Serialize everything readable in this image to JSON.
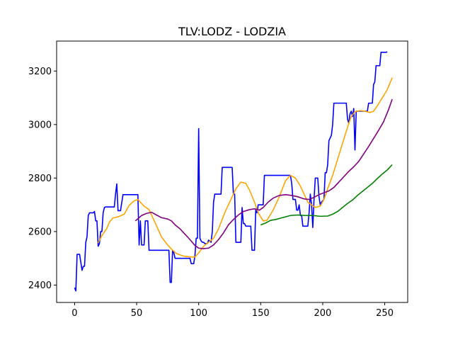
{
  "chart_data": {
    "type": "line",
    "title": "TLV:LODZ - LODZIA",
    "xlabel": "",
    "ylabel": "",
    "xlim": [
      -14.5,
      268.5
    ],
    "ylim": [
      2335,
      3312
    ],
    "xticks": [
      0,
      50,
      100,
      150,
      200,
      250
    ],
    "yticks": [
      2400,
      2600,
      2800,
      3000,
      3200
    ],
    "grid": false,
    "legend": "none",
    "series": [
      {
        "color": "#0000ff",
        "points": [
          [
            0,
            2390
          ],
          [
            1,
            2378
          ],
          [
            2,
            2515
          ],
          [
            4,
            2515
          ],
          [
            6,
            2455
          ],
          [
            7,
            2470
          ],
          [
            8,
            2470
          ],
          [
            9,
            2560
          ],
          [
            10,
            2580
          ],
          [
            11,
            2660
          ],
          [
            12,
            2670
          ],
          [
            15,
            2670
          ],
          [
            16,
            2675
          ],
          [
            17,
            2640
          ],
          [
            18,
            2640
          ],
          [
            19,
            2545
          ],
          [
            20,
            2555
          ],
          [
            21,
            2600
          ],
          [
            22,
            2600
          ],
          [
            23,
            2670
          ],
          [
            24,
            2690
          ],
          [
            25,
            2692
          ],
          [
            32,
            2692
          ],
          [
            33,
            2740
          ],
          [
            34,
            2778
          ],
          [
            35,
            2678
          ],
          [
            37,
            2678
          ],
          [
            39,
            2738
          ],
          [
            51,
            2738
          ],
          [
            52,
            2550
          ],
          [
            53,
            2640
          ],
          [
            54,
            2550
          ],
          [
            56,
            2550
          ],
          [
            57,
            2640
          ],
          [
            59,
            2640
          ],
          [
            60,
            2530
          ],
          [
            76,
            2530
          ],
          [
            77,
            2410
          ],
          [
            78,
            2410
          ],
          [
            79,
            2530
          ],
          [
            80,
            2520
          ],
          [
            81,
            2500
          ],
          [
            93,
            2500
          ],
          [
            94,
            2480
          ],
          [
            96,
            2480
          ],
          [
            97,
            2510
          ],
          [
            98,
            2575
          ],
          [
            99,
            2575
          ],
          [
            100,
            2985
          ],
          [
            101,
            2575
          ],
          [
            102,
            2565
          ],
          [
            103,
            2560
          ],
          [
            104,
            2560
          ],
          [
            105,
            2555
          ],
          [
            107,
            2555
          ],
          [
            108,
            2568
          ],
          [
            110,
            2560
          ],
          [
            111,
            2600
          ],
          [
            112,
            2710
          ],
          [
            113,
            2740
          ],
          [
            118,
            2740
          ],
          [
            119,
            2840
          ],
          [
            127,
            2840
          ],
          [
            128,
            2740
          ],
          [
            129,
            2740
          ],
          [
            130,
            2560
          ],
          [
            134,
            2560
          ],
          [
            135,
            2690
          ],
          [
            136,
            2630
          ],
          [
            137,
            2630
          ],
          [
            138,
            2620
          ],
          [
            142,
            2620
          ],
          [
            143,
            2530
          ],
          [
            145,
            2530
          ],
          [
            146,
            2680
          ],
          [
            147,
            2670
          ],
          [
            148,
            2700
          ],
          [
            152,
            2700
          ],
          [
            153,
            2810
          ],
          [
            174,
            2810
          ],
          [
            175,
            2780
          ],
          [
            176,
            2720
          ],
          [
            178,
            2720
          ],
          [
            179,
            2680
          ],
          [
            180,
            2680
          ],
          [
            181,
            2700
          ],
          [
            182,
            2660
          ],
          [
            183,
            2660
          ],
          [
            184,
            2620
          ],
          [
            188,
            2620
          ],
          [
            189,
            2670
          ],
          [
            190,
            2740
          ],
          [
            191,
            2700
          ],
          [
            192,
            2615
          ],
          [
            193,
            2720
          ],
          [
            194,
            2800
          ],
          [
            196,
            2800
          ],
          [
            197,
            2730
          ],
          [
            198,
            2700
          ],
          [
            199,
            2710
          ],
          [
            201,
            2720
          ],
          [
            202,
            2820
          ],
          [
            203,
            2820
          ],
          [
            204,
            2850
          ],
          [
            205,
            2940
          ],
          [
            207,
            2960
          ],
          [
            208,
            3000
          ],
          [
            209,
            3080
          ],
          [
            219,
            3080
          ],
          [
            220,
            3020
          ],
          [
            221,
            3005
          ],
          [
            222,
            3040
          ],
          [
            223,
            3050
          ],
          [
            224,
            3030
          ],
          [
            225,
            3060
          ],
          [
            226,
            2905
          ],
          [
            227,
            3050
          ],
          [
            236,
            3050
          ],
          [
            237,
            3080
          ],
          [
            240,
            3080
          ],
          [
            241,
            3150
          ],
          [
            242,
            3160
          ],
          [
            243,
            3220
          ],
          [
            246,
            3220
          ],
          [
            247,
            3270
          ],
          [
            251,
            3270
          ],
          [
            252,
            3272
          ]
        ]
      },
      {
        "color": "#ffa500",
        "points": [
          [
            19,
            2558
          ],
          [
            22,
            2585
          ],
          [
            26,
            2612
          ],
          [
            28,
            2635
          ],
          [
            31,
            2651
          ],
          [
            35,
            2655
          ],
          [
            40,
            2665
          ],
          [
            44,
            2698
          ],
          [
            48,
            2715
          ],
          [
            51,
            2720
          ],
          [
            53,
            2710
          ],
          [
            56,
            2695
          ],
          [
            60,
            2682
          ],
          [
            65,
            2632
          ],
          [
            70,
            2580
          ],
          [
            75,
            2550
          ],
          [
            78,
            2535
          ],
          [
            82,
            2518
          ],
          [
            88,
            2508
          ],
          [
            94,
            2505
          ],
          [
            97,
            2505
          ],
          [
            100,
            2520
          ],
          [
            104,
            2545
          ],
          [
            108,
            2560
          ],
          [
            112,
            2575
          ],
          [
            116,
            2610
          ],
          [
            121,
            2670
          ],
          [
            126,
            2720
          ],
          [
            130,
            2760
          ],
          [
            134,
            2785
          ],
          [
            138,
            2780
          ],
          [
            141,
            2755
          ],
          [
            145,
            2710
          ],
          [
            148,
            2670
          ],
          [
            152,
            2640
          ],
          [
            155,
            2642
          ],
          [
            160,
            2680
          ],
          [
            165,
            2730
          ],
          [
            170,
            2790
          ],
          [
            174,
            2810
          ],
          [
            178,
            2800
          ],
          [
            182,
            2770
          ],
          [
            185,
            2740
          ],
          [
            188,
            2710
          ],
          [
            191,
            2700
          ],
          [
            194,
            2690
          ],
          [
            198,
            2695
          ],
          [
            201,
            2720
          ],
          [
            204,
            2760
          ],
          [
            208,
            2810
          ],
          [
            212,
            2870
          ],
          [
            216,
            2930
          ],
          [
            220,
            2990
          ],
          [
            223,
            3030
          ],
          [
            226,
            3048
          ],
          [
            230,
            3052
          ],
          [
            234,
            3050
          ],
          [
            238,
            3045
          ],
          [
            241,
            3050
          ],
          [
            244,
            3070
          ],
          [
            248,
            3100
          ],
          [
            252,
            3130
          ],
          [
            256,
            3175
          ]
        ]
      },
      {
        "color": "#800080",
        "points": [
          [
            49,
            2640
          ],
          [
            54,
            2660
          ],
          [
            58,
            2668
          ],
          [
            62,
            2672
          ],
          [
            66,
            2662
          ],
          [
            70,
            2652
          ],
          [
            75,
            2647
          ],
          [
            78,
            2640
          ],
          [
            81,
            2625
          ],
          [
            85,
            2610
          ],
          [
            89,
            2590
          ],
          [
            93,
            2570
          ],
          [
            97,
            2548
          ],
          [
            100,
            2538
          ],
          [
            104,
            2536
          ],
          [
            108,
            2538
          ],
          [
            112,
            2550
          ],
          [
            116,
            2570
          ],
          [
            120,
            2595
          ],
          [
            124,
            2625
          ],
          [
            128,
            2645
          ],
          [
            132,
            2662
          ],
          [
            136,
            2675
          ],
          [
            141,
            2682
          ],
          [
            145,
            2685
          ],
          [
            149,
            2680
          ],
          [
            152,
            2690
          ],
          [
            156,
            2710
          ],
          [
            160,
            2725
          ],
          [
            165,
            2735
          ],
          [
            170,
            2738
          ],
          [
            175,
            2735
          ],
          [
            180,
            2730
          ],
          [
            185,
            2722
          ],
          [
            189,
            2720
          ],
          [
            193,
            2728
          ],
          [
            197,
            2738
          ],
          [
            201,
            2745
          ],
          [
            205,
            2752
          ],
          [
            209,
            2765
          ],
          [
            213,
            2785
          ],
          [
            217,
            2805
          ],
          [
            221,
            2825
          ],
          [
            225,
            2842
          ],
          [
            229,
            2862
          ],
          [
            233,
            2890
          ],
          [
            237,
            2918
          ],
          [
            241,
            2948
          ],
          [
            245,
            2978
          ],
          [
            249,
            3010
          ],
          [
            253,
            3055
          ],
          [
            256,
            3095
          ]
        ]
      },
      {
        "color": "#008000",
        "points": [
          [
            150,
            2625
          ],
          [
            154,
            2632
          ],
          [
            158,
            2642
          ],
          [
            162,
            2645
          ],
          [
            166,
            2650
          ],
          [
            170,
            2655
          ],
          [
            174,
            2660
          ],
          [
            180,
            2662
          ],
          [
            186,
            2660
          ],
          [
            192,
            2660
          ],
          [
            198,
            2657
          ],
          [
            204,
            2658
          ],
          [
            208,
            2665
          ],
          [
            212,
            2675
          ],
          [
            216,
            2690
          ],
          [
            220,
            2705
          ],
          [
            224,
            2718
          ],
          [
            228,
            2735
          ],
          [
            232,
            2750
          ],
          [
            236,
            2765
          ],
          [
            240,
            2780
          ],
          [
            244,
            2798
          ],
          [
            248,
            2815
          ],
          [
            252,
            2830
          ],
          [
            256,
            2850
          ]
        ]
      }
    ]
  }
}
